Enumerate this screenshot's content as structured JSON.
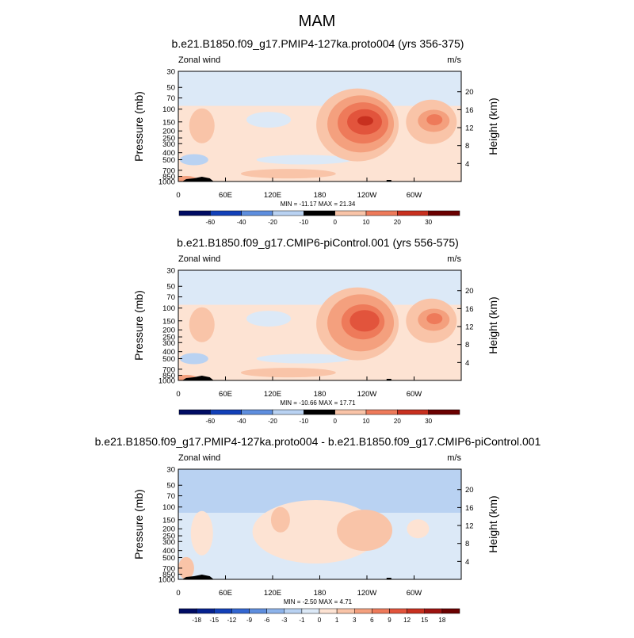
{
  "figure": {
    "title": "MAM"
  },
  "colors": {
    "panel_background": "#dce9f7",
    "land": "#000000",
    "positive_scale": [
      "#fde3d3",
      "#f9c4a8",
      "#f4a07e",
      "#ee7a5a",
      "#e2543c",
      "#c8301f",
      "#9d1210",
      "#6b0000"
    ],
    "negative_scale": [
      "#dce9f7",
      "#b9d2f2",
      "#8db3ea",
      "#5e8ede",
      "#3366d1",
      "#1240b8",
      "#05218f",
      "#000c64"
    ]
  },
  "shared_axes": {
    "left_ticks": [
      "30",
      "50",
      "70",
      "100",
      "150",
      "200",
      "250",
      "300",
      "400",
      "500",
      "700",
      "850",
      "1000"
    ],
    "right_ticks": [
      "20",
      "16",
      "12",
      "8",
      "4"
    ],
    "x_ticks": [
      "0",
      "60E",
      "120E",
      "180",
      "120W",
      "60W"
    ],
    "left_label": "Pressure (mb)",
    "right_label": "Height (km)",
    "corner_left": "Zonal wind",
    "corner_right": "m/s"
  },
  "panels": [
    {
      "title": "b.e21.B1850.f09_g17.PMIP4-127ka.proto004 (yrs 356-375)",
      "minmax": "MIN = -11.17  MAX =  21.34",
      "colorbar_labels": [
        "-60",
        "-40",
        "-20",
        "-10",
        "0",
        "10",
        "20",
        "30"
      ]
    },
    {
      "title": "b.e21.B1850.f09_g17.CMIP6-piControl.001 (yrs 556-575)",
      "minmax": "MIN = -10.66  MAX =  17.71",
      "colorbar_labels": [
        "-60",
        "-40",
        "-20",
        "-10",
        "0",
        "10",
        "20",
        "30"
      ]
    },
    {
      "title": "b.e21.B1850.f09_g17.PMIP4-127ka.proto004 - b.e21.B1850.f09_g17.CMIP6-piControl.001",
      "minmax": "MIN = -2.50  MAX =  4.71",
      "colorbar_labels": [
        "-18",
        "-15",
        "-12",
        "-9",
        "-6",
        "-3",
        "-1",
        "0",
        "1",
        "3",
        "6",
        "9",
        "12",
        "15",
        "18"
      ]
    }
  ],
  "chart_data": [
    {
      "type": "heatmap",
      "title": "b.e21.B1850.f09_g17.PMIP4-127ka.proto004 (yrs 356-375)",
      "variable": "Zonal wind",
      "units": "m/s",
      "xlabel": "",
      "ylabel": "Pressure (mb)",
      "y2label": "Height (km)",
      "x_ticks": [
        "0",
        "60E",
        "120E",
        "180",
        "120W",
        "60W"
      ],
      "xlim_deg": [
        0,
        360
      ],
      "ylim_mb": [
        30,
        1000
      ],
      "levels": [
        -60,
        -40,
        -20,
        -10,
        0,
        10,
        20,
        30
      ],
      "min": -11.17,
      "max": 21.34,
      "features": [
        {
          "kind": "jet core",
          "lon_deg": 235,
          "pressure_mb": 150,
          "value": 21.34
        },
        {
          "kind": "jet core",
          "lon_deg": 325,
          "pressure_mb": 140,
          "value": 12
        },
        {
          "kind": "westerly maximum",
          "lon_deg": 30,
          "pressure_mb": 170,
          "value": 7
        },
        {
          "kind": "easterly band",
          "pressure_mb": 40,
          "value": -5
        }
      ]
    },
    {
      "type": "heatmap",
      "title": "b.e21.B1850.f09_g17.CMIP6-piControl.001 (yrs 556-575)",
      "variable": "Zonal wind",
      "units": "m/s",
      "xlabel": "",
      "ylabel": "Pressure (mb)",
      "y2label": "Height (km)",
      "x_ticks": [
        "0",
        "60E",
        "120E",
        "180",
        "120W",
        "60W"
      ],
      "xlim_deg": [
        0,
        360
      ],
      "ylim_mb": [
        30,
        1000
      ],
      "levels": [
        -60,
        -40,
        -20,
        -10,
        0,
        10,
        20,
        30
      ],
      "min": -10.66,
      "max": 17.71,
      "features": [
        {
          "kind": "jet core",
          "lon_deg": 235,
          "pressure_mb": 150,
          "value": 17.71
        },
        {
          "kind": "jet core",
          "lon_deg": 325,
          "pressure_mb": 140,
          "value": 12
        },
        {
          "kind": "westerly maximum",
          "lon_deg": 30,
          "pressure_mb": 170,
          "value": 6
        },
        {
          "kind": "easterly band",
          "pressure_mb": 40,
          "value": -4
        }
      ]
    },
    {
      "type": "heatmap",
      "title": "b.e21.B1850.f09_g17.PMIP4-127ka.proto004 - b.e21.B1850.f09_g17.CMIP6-piControl.001",
      "variable": "Zonal wind",
      "units": "m/s",
      "xlabel": "",
      "ylabel": "Pressure (mb)",
      "y2label": "Height (km)",
      "x_ticks": [
        "0",
        "60E",
        "120E",
        "180",
        "120W",
        "60W"
      ],
      "xlim_deg": [
        0,
        360
      ],
      "ylim_mb": [
        30,
        1000
      ],
      "levels": [
        -18,
        -15,
        -12,
        -9,
        -6,
        -3,
        -1,
        0,
        1,
        3,
        6,
        9,
        12,
        15,
        18
      ],
      "min": -2.5,
      "max": 4.71,
      "features": [
        {
          "kind": "positive difference maximum",
          "lon_deg": 235,
          "pressure_mb": 200,
          "value": 4.71
        },
        {
          "kind": "positive difference",
          "lon_deg": 130,
          "pressure_mb": 200,
          "value": 2
        },
        {
          "kind": "negative difference band",
          "pressure_mb": 50,
          "value": -1
        }
      ]
    }
  ]
}
